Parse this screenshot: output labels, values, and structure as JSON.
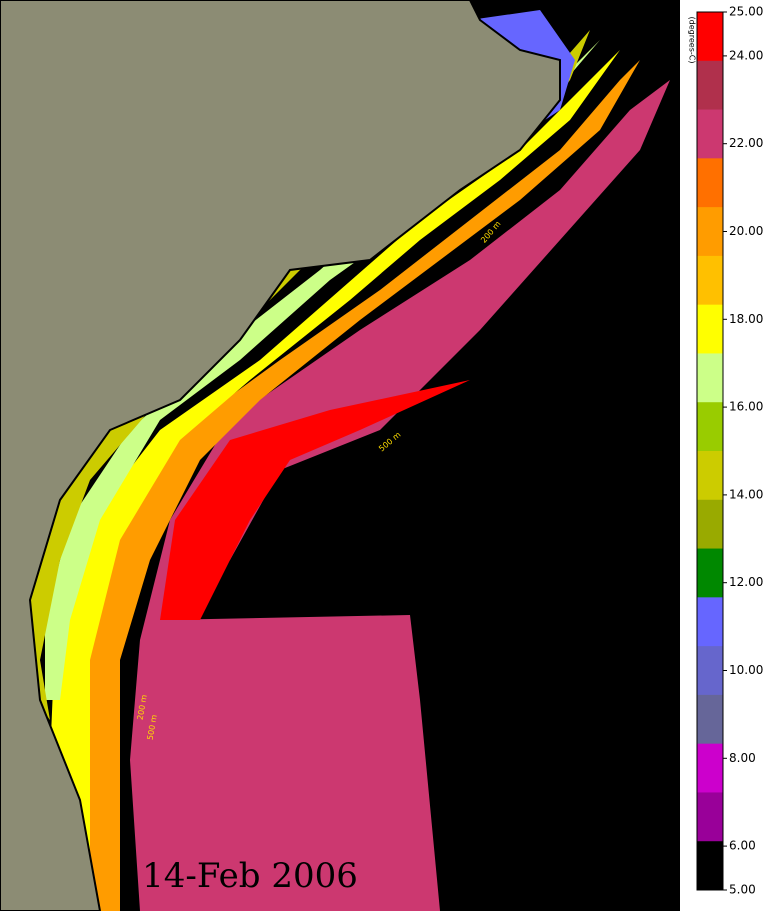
{
  "legend": {
    "unit": "(degrees-C)",
    "ticks": [
      {
        "value": 25,
        "label": "25.00"
      },
      {
        "value": 24,
        "label": "24.00"
      },
      {
        "value": 22,
        "label": "22.00"
      },
      {
        "value": 20,
        "label": "20.00"
      },
      {
        "value": 18,
        "label": "18.00"
      },
      {
        "value": 16,
        "label": "16.00"
      },
      {
        "value": 14,
        "label": "14.00"
      },
      {
        "value": 12,
        "label": "12.00"
      },
      {
        "value": 10,
        "label": "10.00"
      },
      {
        "value": 8,
        "label": "8.00"
      },
      {
        "value": 6,
        "label": "6.00"
      },
      {
        "value": 5,
        "label": "5.00"
      }
    ],
    "colors": [
      "#ff0000",
      "#b0304c",
      "#cc3870",
      "#ff7000",
      "#ff9c00",
      "#ffc000",
      "#ffff00",
      "#ccff88",
      "#99cc00",
      "#cccc00",
      "#99aa00",
      "#008800",
      "#6666ff",
      "#6666cc",
      "#666699",
      "#cc00cc",
      "#990099",
      "#000000"
    ]
  },
  "date": "14-Feb 2006",
  "contour_labels": [
    "200 m",
    "500 m",
    "200 m",
    "500 m"
  ]
}
